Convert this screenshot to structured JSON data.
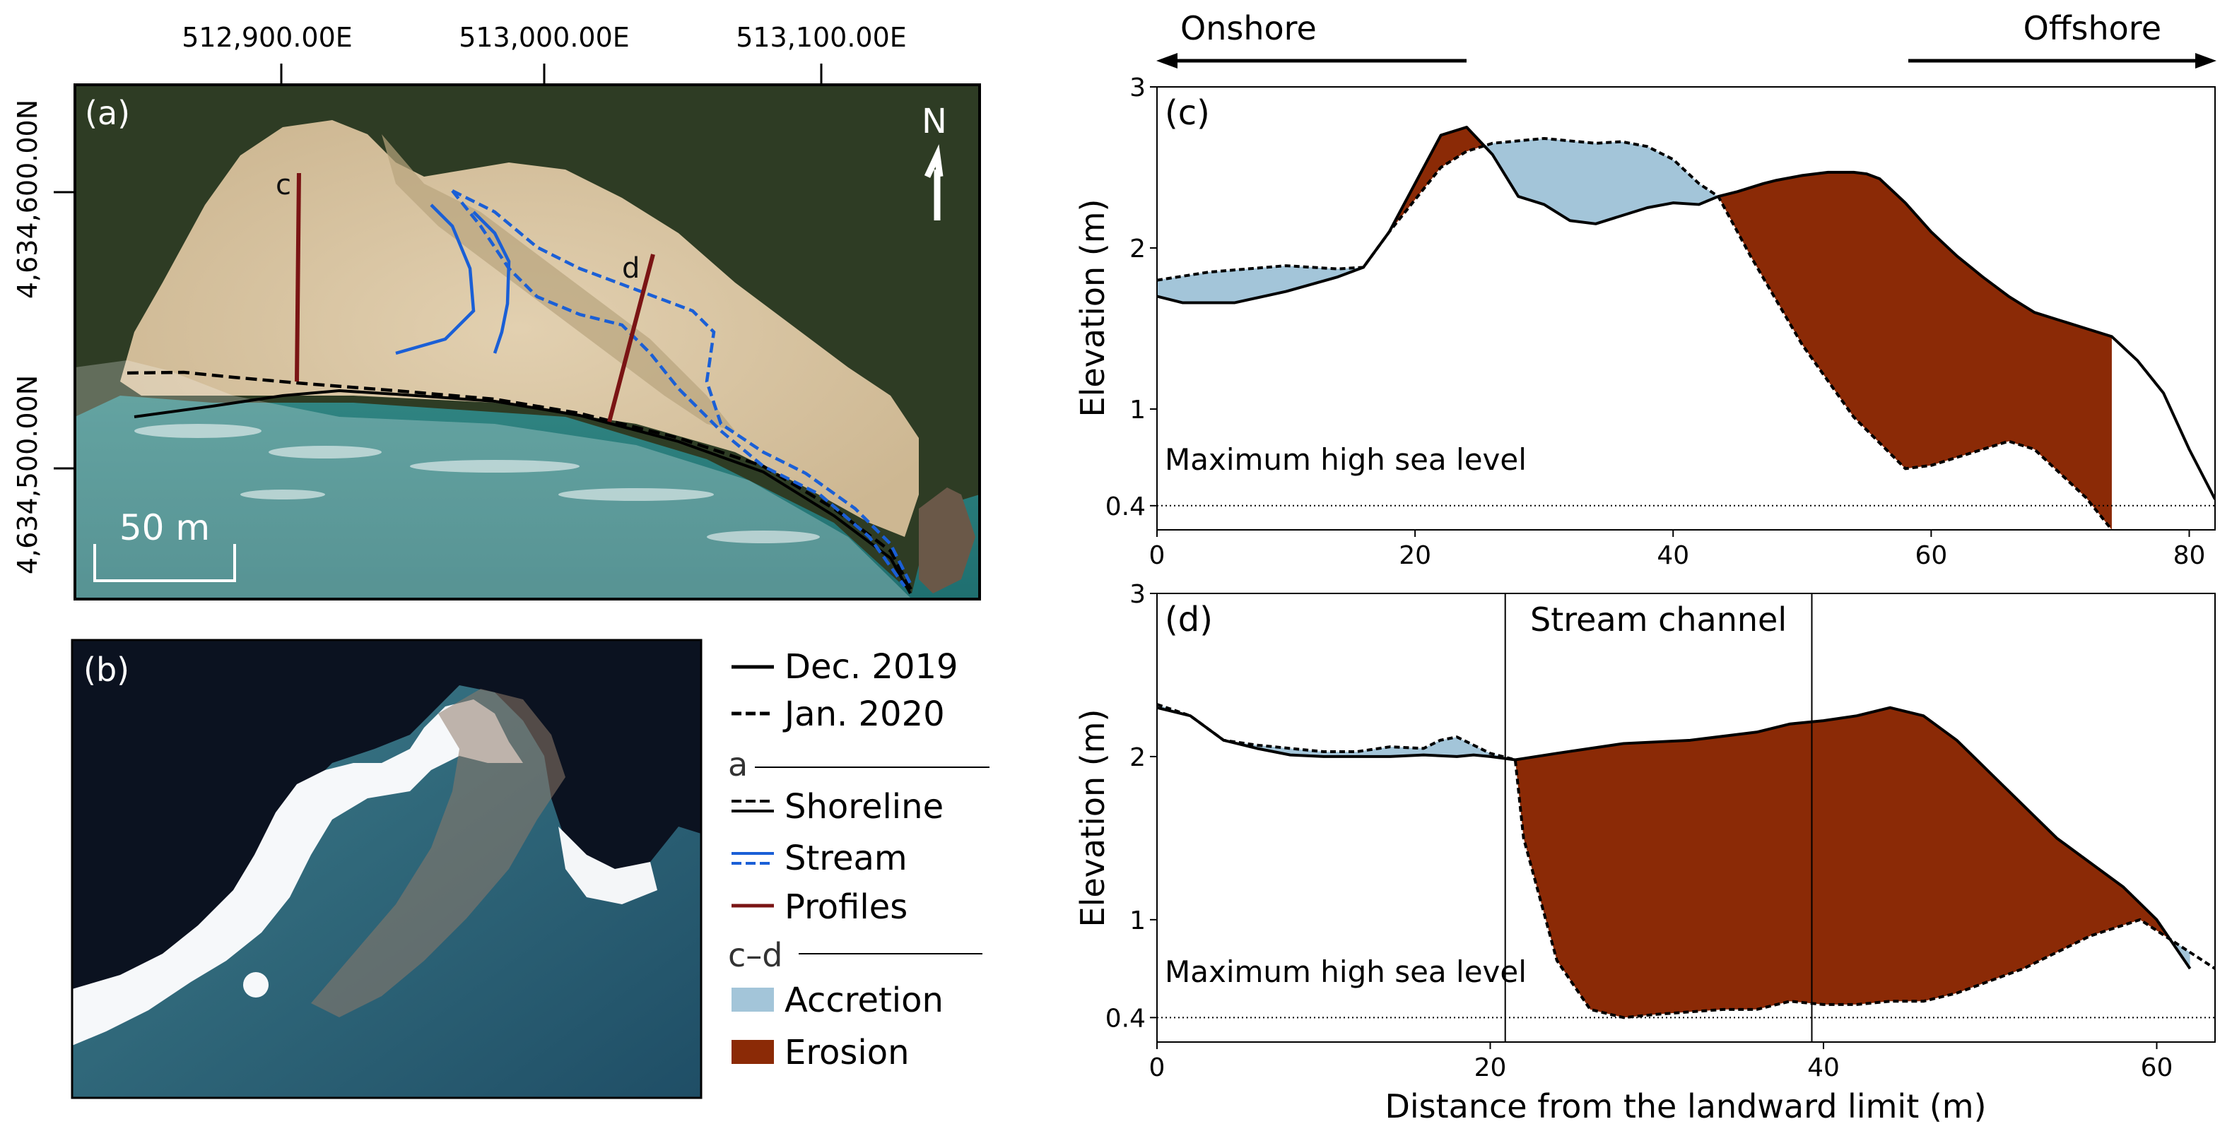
{
  "colors": {
    "accretion": "#a3c5d9",
    "erosion": "#8b2a06",
    "stream": "#1a5fd6",
    "profiles": "#7a1414",
    "shoreline": "#000000",
    "sand": "#d9c6a6",
    "sea": "#2f8f8e",
    "vegetation": "#2e3c24"
  },
  "map_a": {
    "panel_label": "(a)",
    "x_ticks": [
      "512,900.00E",
      "513,000.00E",
      "513,100.00E"
    ],
    "y_ticks": [
      "4,634,600.00N",
      "4,634,500.00N"
    ],
    "north_label": "N",
    "scale_bar_label": "50 m",
    "profile_labels": [
      "c",
      "d"
    ]
  },
  "image_b": {
    "panel_label": "(b)"
  },
  "legend": {
    "dec_2019": "Dec. 2019",
    "jan_2020": "Jan. 2020",
    "group_a": "a",
    "shoreline": "Shoreline",
    "stream": "Stream",
    "profiles": "Profiles",
    "group_cd": "c–d",
    "accretion": "Accretion",
    "erosion": "Erosion"
  },
  "direction": {
    "onshore": "Onshore",
    "offshore": "Offshore"
  },
  "chart_data": [
    {
      "type": "area",
      "panel_label": "(c)",
      "ylabel": "Elevation (m)",
      "xlim": [
        0,
        82
      ],
      "ylim": [
        0.25,
        3
      ],
      "xticks": [
        0,
        20,
        40,
        60,
        80
      ],
      "yticks": [
        0.4,
        1,
        2,
        3
      ],
      "reference_line": {
        "label": "Maximum high sea level",
        "value": 0.4
      },
      "series": [
        {
          "name": "Dec. 2019",
          "style": "solid",
          "x": [
            0,
            2,
            6,
            10,
            14,
            16,
            18,
            20,
            22,
            24,
            26,
            28,
            30,
            32,
            34,
            36,
            38,
            40,
            42,
            43.5,
            45,
            47,
            48,
            50,
            52,
            54,
            55,
            56,
            58,
            60,
            62,
            64,
            66,
            68,
            70,
            72,
            74,
            76,
            78,
            80,
            82
          ],
          "y": [
            1.7,
            1.66,
            1.66,
            1.73,
            1.82,
            1.88,
            2.1,
            2.4,
            2.7,
            2.75,
            2.58,
            2.32,
            2.27,
            2.17,
            2.15,
            2.2,
            2.25,
            2.28,
            2.27,
            2.32,
            2.35,
            2.4,
            2.42,
            2.45,
            2.47,
            2.47,
            2.46,
            2.43,
            2.28,
            2.1,
            1.95,
            1.82,
            1.7,
            1.6,
            1.55,
            1.5,
            1.45,
            1.3,
            1.1,
            0.75,
            0.44
          ]
        },
        {
          "name": "Jan. 2020",
          "style": "dashed",
          "x": [
            0,
            4,
            10,
            14,
            16,
            18,
            20,
            22,
            24,
            26,
            30,
            34,
            36,
            38,
            40,
            42,
            43.5,
            46,
            50,
            54,
            58,
            60,
            62,
            64,
            66,
            68,
            70,
            72,
            74
          ],
          "y": [
            1.8,
            1.85,
            1.89,
            1.87,
            1.88,
            2.1,
            2.3,
            2.5,
            2.6,
            2.65,
            2.68,
            2.65,
            2.66,
            2.63,
            2.55,
            2.4,
            2.32,
            1.95,
            1.4,
            0.95,
            0.63,
            0.65,
            0.7,
            0.75,
            0.8,
            0.75,
            0.6,
            0.45,
            0.25
          ]
        }
      ]
    },
    {
      "type": "area",
      "panel_label": "(d)",
      "xlabel": "Distance from the landward limit (m)",
      "ylabel": "Elevation (m)",
      "xlim": [
        0,
        63.5
      ],
      "ylim": [
        0.25,
        3
      ],
      "xticks": [
        0,
        20,
        40,
        60
      ],
      "yticks": [
        0.4,
        1,
        2,
        3
      ],
      "reference_line": {
        "label": "Maximum high sea level",
        "value": 0.4
      },
      "annotation": {
        "label": "Stream channel",
        "x_start": 20.9,
        "x_end": 39.3
      },
      "series": [
        {
          "name": "Dec. 2019",
          "style": "solid",
          "x": [
            0,
            2,
            4,
            6,
            8,
            10,
            12,
            14,
            16,
            18,
            19,
            20,
            21.5,
            24,
            28,
            32,
            36,
            38,
            40,
            42,
            44,
            46,
            48,
            50,
            52,
            54,
            56,
            58,
            60,
            62
          ],
          "y": [
            2.3,
            2.25,
            2.1,
            2.05,
            2.01,
            2.0,
            2.0,
            2.0,
            2.01,
            2.0,
            2.01,
            2.0,
            1.98,
            2.02,
            2.08,
            2.1,
            2.15,
            2.2,
            2.22,
            2.25,
            2.3,
            2.25,
            2.1,
            1.9,
            1.7,
            1.5,
            1.35,
            1.2,
            1.0,
            0.7
          ]
        },
        {
          "name": "Jan. 2020",
          "style": "dashed",
          "x": [
            0,
            2,
            4,
            6,
            8,
            10,
            12,
            14,
            16,
            17,
            18,
            19,
            20,
            21.5,
            22,
            24,
            26,
            28,
            30,
            34,
            36,
            38,
            40,
            42,
            44,
            46,
            48,
            52,
            56,
            59,
            62,
            63.5
          ],
          "y": [
            2.32,
            2.25,
            2.1,
            2.07,
            2.05,
            2.03,
            2.03,
            2.06,
            2.05,
            2.1,
            2.12,
            2.07,
            2.02,
            1.98,
            1.5,
            0.75,
            0.45,
            0.4,
            0.42,
            0.45,
            0.45,
            0.5,
            0.48,
            0.48,
            0.5,
            0.5,
            0.55,
            0.7,
            0.9,
            1.0,
            0.8,
            0.7
          ]
        }
      ]
    }
  ]
}
